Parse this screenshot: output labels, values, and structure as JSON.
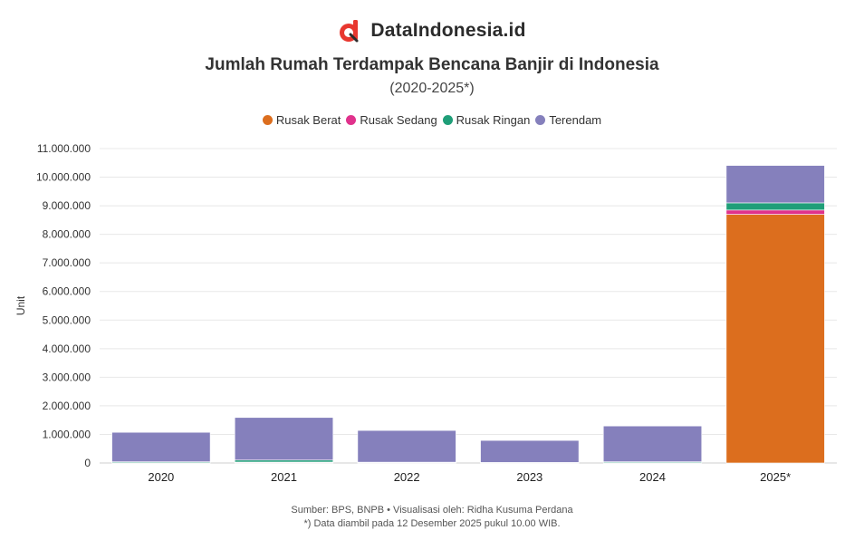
{
  "brand": {
    "name": "DataIndonesia.id"
  },
  "legend": [
    {
      "label": "Rusak Berat",
      "color": "#dc6e1e"
    },
    {
      "label": "Rusak Sedang",
      "color": "#e0328c"
    },
    {
      "label": "Rusak Ringan",
      "color": "#1f9e78"
    },
    {
      "label": "Terendam",
      "color": "#8580bc"
    }
  ],
  "footer": {
    "source": "Sumber: BPS, BNPB • Visualisasi oleh: Ridha Kusuma Perdana",
    "note": "*) Data diambil pada 12 Desember 2025 pukul 10.00 WIB."
  },
  "chart_data": {
    "type": "bar",
    "stacked": true,
    "title": "Jumlah Rumah Terdampak Bencana Banjir di Indonesia",
    "subtitle": "(2020-2025*)",
    "xlabel": "",
    "ylabel": "Unit",
    "categories": [
      "2020",
      "2021",
      "2022",
      "2023",
      "2024",
      "2025*"
    ],
    "ylim": [
      0,
      11000000
    ],
    "yticks": [
      "0",
      "1.000.000",
      "2.000.000",
      "3.000.000",
      "4.000.000",
      "5.000.000",
      "6.000.000",
      "7.000.000",
      "8.000.000",
      "9.000.000",
      "10.000.000",
      "11.000.000"
    ],
    "grid": true,
    "legend_position": "top",
    "series": [
      {
        "name": "Rusak Berat",
        "color": "#dc6e1e",
        "values": [
          5000,
          12000,
          4000,
          3000,
          5000,
          8700000
        ]
      },
      {
        "name": "Rusak Sedang",
        "color": "#e0328c",
        "values": [
          8000,
          20000,
          6000,
          4000,
          9000,
          150000
        ]
      },
      {
        "name": "Rusak Ringan",
        "color": "#1f9e78",
        "values": [
          30000,
          70000,
          18000,
          12000,
          30000,
          250000
        ]
      },
      {
        "name": "Terendam",
        "color": "#8580bc",
        "values": [
          1030000,
          1490000,
          1110000,
          770000,
          1250000,
          1310000
        ]
      }
    ]
  }
}
